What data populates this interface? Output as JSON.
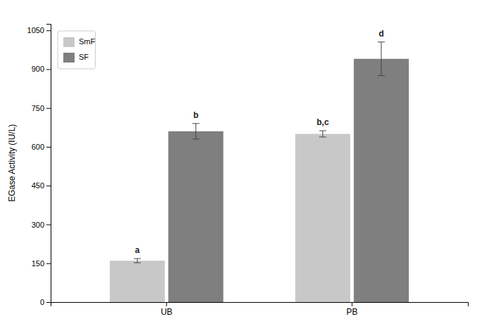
{
  "chart_data": {
    "type": "bar",
    "categories": [
      "UB",
      "PB"
    ],
    "series": [
      {
        "name": "SmF",
        "color": "#c8c8c8",
        "values": [
          160,
          650
        ],
        "errors": [
          8,
          12
        ],
        "annotations": [
          "a",
          "b,c"
        ]
      },
      {
        "name": "SF",
        "color": "#7f7f7f",
        "values": [
          660,
          940
        ],
        "errors": [
          30,
          65
        ],
        "annotations": [
          "b",
          "d"
        ]
      }
    ],
    "ylabel": "EGase Activity (IU/L)",
    "ylim": [
      0,
      1075
    ],
    "yticks": [
      0,
      150,
      300,
      450,
      600,
      750,
      900,
      1050
    ],
    "grid": false,
    "legend": "upper left"
  }
}
